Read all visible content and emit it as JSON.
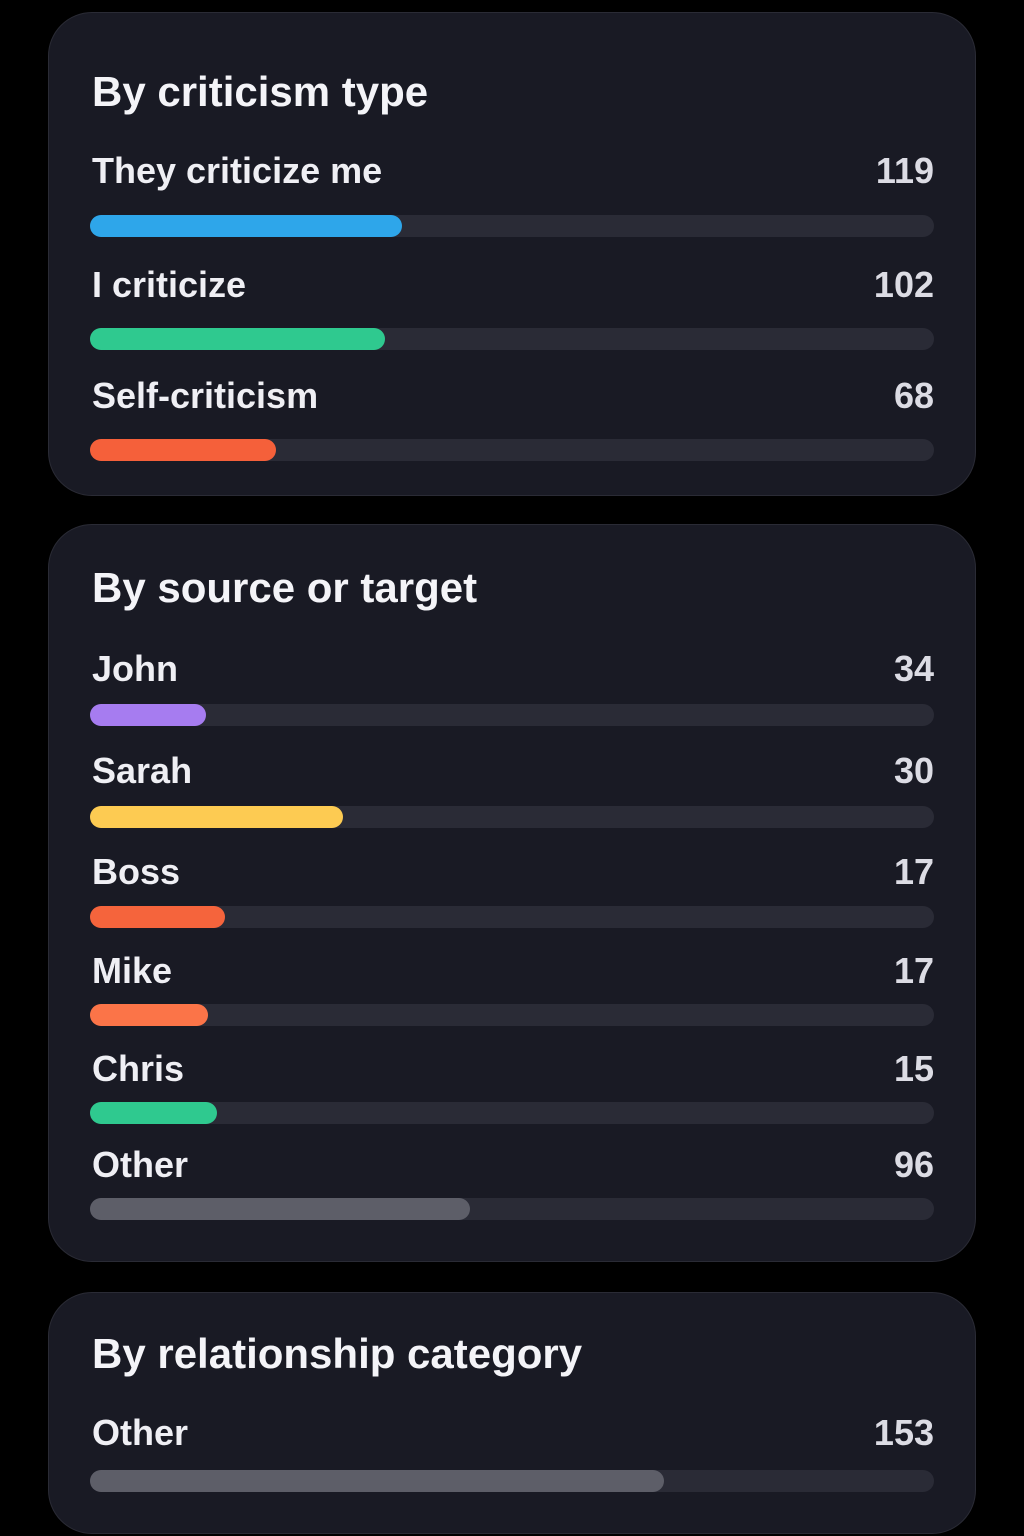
{
  "sections": [
    {
      "title": "By criticism type",
      "rows": [
        {
          "label": "They criticize me",
          "value": "119",
          "fill": 0.37,
          "color": "#2ea6ea"
        },
        {
          "label": "I criticize",
          "value": "102",
          "fill": 0.35,
          "color": "#2fc98f"
        },
        {
          "label": "Self-criticism",
          "value": "68",
          "fill": 0.22,
          "color": "#f5603a"
        }
      ]
    },
    {
      "title": "By source or target",
      "rows": [
        {
          "label": "John",
          "value": "34",
          "fill": 0.137,
          "color": "#a67cf0"
        },
        {
          "label": "Sarah",
          "value": "30",
          "fill": 0.3,
          "color": "#fdcb52"
        },
        {
          "label": "Boss",
          "value": "17",
          "fill": 0.16,
          "color": "#f5643c"
        },
        {
          "label": "Mike",
          "value": "17",
          "fill": 0.14,
          "color": "#fb7448"
        },
        {
          "label": "Chris",
          "value": "15",
          "fill": 0.15,
          "color": "#2fc98f"
        },
        {
          "label": "Other",
          "value": "96",
          "fill": 0.45,
          "color": "#5d5e68"
        }
      ]
    },
    {
      "title": "By relationship category",
      "rows": [
        {
          "label": "Other",
          "value": "153",
          "fill": 0.68,
          "color": "#5d5e68"
        }
      ]
    }
  ]
}
